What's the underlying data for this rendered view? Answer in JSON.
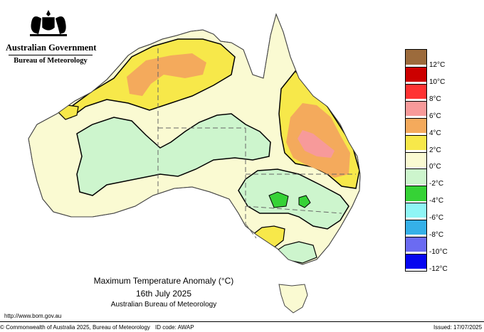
{
  "header": {
    "government": "Australian Government",
    "bureau": "Bureau of Meteorology"
  },
  "title": {
    "line1": "Maximum Temperature Anomaly (°C)",
    "line2": "16th July 2025",
    "line3": "Australian Bureau of Meteorology"
  },
  "legend": {
    "labels": [
      "12°C",
      "10°C",
      "8°C",
      "6°C",
      "4°C",
      "2°C",
      "0°C",
      "-2°C",
      "-4°C",
      "-6°C",
      "-8°C",
      "-10°C",
      "-12°C"
    ],
    "colors": [
      "#9c6b3c",
      "#cc0000",
      "#ff3333",
      "#f79a9a",
      "#f4aa5c",
      "#f7e84a",
      "#fafad2",
      "#cdf5cd",
      "#36d236",
      "#8ff5f5",
      "#35b0e8",
      "#6b6bf2",
      "#0606f0"
    ]
  },
  "footer": {
    "url": "http://www.bom.gov.au",
    "copyright": "© Commonwealth of Australia 2025, Bureau of Meteorology",
    "id_code": "ID code: AWAP",
    "issued": "Issued: 17/07/2025"
  },
  "colors": {
    "land": "#fafad2",
    "anomaly_neg2": "#cdf5cd",
    "anomaly_neg4": "#36d236",
    "anomaly_2": "#f7e84a",
    "anomaly_4": "#f4aa5c",
    "anomaly_6": "#f79a9a"
  }
}
